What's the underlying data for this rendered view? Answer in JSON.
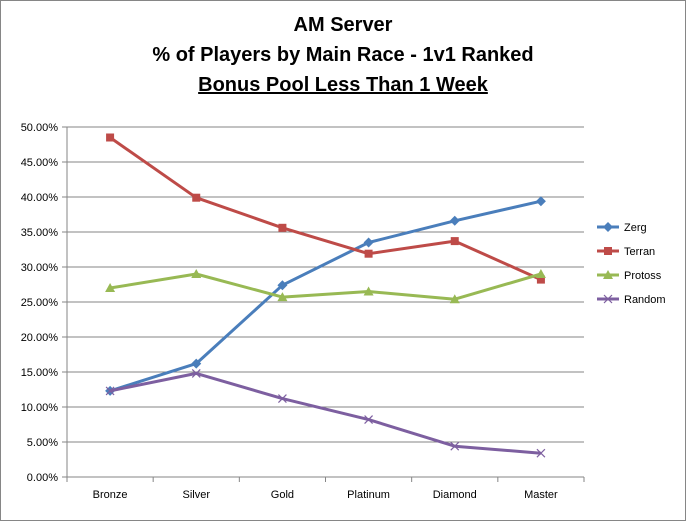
{
  "chart_data": {
    "type": "line",
    "title": "AM Server",
    "subtitle": "% of Players by Main Race - 1v1 Ranked",
    "subtitle2": "Bonus Pool Less Than 1 Week",
    "xlabel": "",
    "ylabel": "",
    "categories": [
      "Bronze",
      "Silver",
      "Gold",
      "Platinum",
      "Diamond",
      "Master"
    ],
    "ylim": [
      0,
      0.5
    ],
    "yticks": [
      "0.00%",
      "5.00%",
      "10.00%",
      "15.00%",
      "20.00%",
      "25.00%",
      "30.00%",
      "35.00%",
      "40.00%",
      "45.00%",
      "50.00%"
    ],
    "grid": true,
    "legend_position": "right",
    "series": [
      {
        "name": "Zerg",
        "color": "#4a7ebb",
        "marker": "diamond",
        "values": [
          0.123,
          0.162,
          0.274,
          0.335,
          0.366,
          0.394
        ]
      },
      {
        "name": "Terran",
        "color": "#be4b48",
        "marker": "square",
        "values": [
          0.485,
          0.399,
          0.356,
          0.319,
          0.337,
          0.282
        ]
      },
      {
        "name": "Protoss",
        "color": "#98b954",
        "marker": "triangle",
        "values": [
          0.27,
          0.29,
          0.257,
          0.265,
          0.254,
          0.29
        ]
      },
      {
        "name": "Random",
        "color": "#7d5fa0",
        "marker": "x",
        "values": [
          0.123,
          0.148,
          0.112,
          0.082,
          0.044,
          0.034
        ]
      }
    ]
  }
}
